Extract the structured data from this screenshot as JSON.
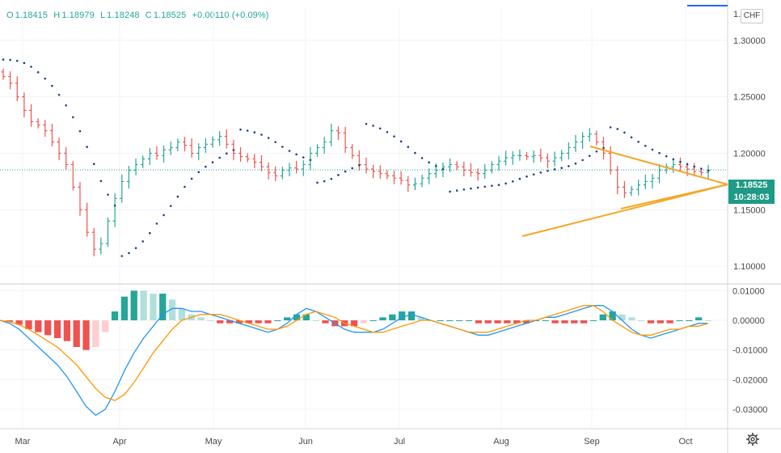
{
  "header": {
    "ohlc": [
      {
        "k": "O",
        "v": "1.18415"
      },
      {
        "k": "H",
        "v": "1.18979"
      },
      {
        "k": "L",
        "v": "1.18248"
      },
      {
        "k": "C",
        "v": "1.18525"
      }
    ],
    "change": "+0.00110 (+0.09%)"
  },
  "currency_button": "CHF",
  "last_price_label": "1.18525",
  "countdown_label": "10:28:03",
  "colors": {
    "up": "#26a69a",
    "down": "#ef5350",
    "hist_up_strong": "#26a69a",
    "hist_up_weak": "#b2dfdb",
    "hist_down_strong": "#ef5350",
    "hist_down_weak": "#ffcdd2",
    "macd_line": "#2196f3",
    "signal_line": "#ff9800",
    "sar_dots": "#1e3f8a",
    "trendlines": "#f5a623"
  },
  "chart_data": [
    {
      "type": "ohlc",
      "price_axis_ticks": [
        "1.30000",
        "1.25000",
        "1.20000",
        "1.15000",
        "1.10000"
      ],
      "time_axis_ticks": [
        "Mar",
        "Apr",
        "May",
        "Jun",
        "Jul",
        "Aug",
        "Sep",
        "Oct"
      ],
      "ylim": [
        1.085,
        1.33
      ],
      "last_price": 1.18525,
      "series_close_approx": [
        1.268,
        1.262,
        1.25,
        1.238,
        1.228,
        1.225,
        1.22,
        1.21,
        1.2,
        1.19,
        1.17,
        1.15,
        1.13,
        1.115,
        1.12,
        1.14,
        1.16,
        1.175,
        1.185,
        1.19,
        1.195,
        1.2,
        1.198,
        1.203,
        1.205,
        1.21,
        1.207,
        1.2,
        1.205,
        1.208,
        1.212,
        1.215,
        1.208,
        1.2,
        1.197,
        1.195,
        1.192,
        1.188,
        1.183,
        1.18,
        1.185,
        1.187,
        1.186,
        1.19,
        1.2,
        1.205,
        1.21,
        1.22,
        1.218,
        1.205,
        1.198,
        1.19,
        1.186,
        1.184,
        1.182,
        1.18,
        1.178,
        1.176,
        1.172,
        1.173,
        1.178,
        1.182,
        1.185,
        1.188,
        1.19,
        1.188,
        1.185,
        1.183,
        1.182,
        1.185,
        1.19,
        1.193,
        1.196,
        1.198,
        1.198,
        1.197,
        1.198,
        1.196,
        1.193,
        1.196,
        1.2,
        1.205,
        1.21,
        1.215,
        1.217,
        1.21,
        1.2,
        1.185,
        1.17,
        1.165,
        1.168,
        1.172,
        1.175,
        1.178,
        1.185,
        1.188,
        1.19,
        1.188,
        1.186,
        1.184,
        1.183,
        1.185
      ]
    },
    {
      "type": "macd",
      "axis_ticks": [
        "0.01000",
        "0.00000",
        "-0.01000",
        "-0.02000",
        "-0.03000"
      ],
      "ylim": [
        -0.036,
        0.012
      ],
      "macd_approx": [
        0,
        -0.001,
        -0.003,
        -0.006,
        -0.009,
        -0.012,
        -0.015,
        -0.019,
        -0.024,
        -0.029,
        -0.032,
        -0.03,
        -0.024,
        -0.017,
        -0.011,
        -0.006,
        -0.002,
        0.002,
        0.004,
        0.004,
        0.003,
        0.003,
        0.002,
        0.001,
        0.0,
        -0.001,
        -0.002,
        -0.003,
        -0.004,
        -0.003,
        -0.001,
        0.002,
        0.004,
        0.003,
        0.001,
        -0.001,
        -0.003,
        -0.004,
        -0.004,
        -0.004,
        -0.003,
        -0.001,
        0.001,
        0.002,
        0.001,
        0.0,
        -0.001,
        -0.002,
        -0.003,
        -0.004,
        -0.005,
        -0.005,
        -0.004,
        -0.003,
        -0.002,
        -0.001,
        0.0,
        0.001,
        0.001,
        0.002,
        0.003,
        0.004,
        0.005,
        0.005,
        0.003,
        0.0,
        -0.003,
        -0.005,
        -0.006,
        -0.005,
        -0.004,
        -0.003,
        -0.002,
        -0.001,
        -0.001,
        0.0,
        0.0
      ],
      "signal_approx": [
        0,
        -0.0005,
        -0.0015,
        -0.003,
        -0.005,
        -0.007,
        -0.009,
        -0.012,
        -0.015,
        -0.019,
        -0.023,
        -0.026,
        -0.027,
        -0.025,
        -0.021,
        -0.016,
        -0.011,
        -0.007,
        -0.003,
        0.0,
        0.001,
        0.002,
        0.002,
        0.002,
        0.001,
        0.0,
        -0.001,
        -0.002,
        -0.003,
        -0.003,
        -0.002,
        0.0,
        0.002,
        0.003,
        0.002,
        0.001,
        -0.001,
        -0.002,
        -0.003,
        -0.004,
        -0.004,
        -0.003,
        -0.002,
        -0.001,
        0.0,
        0.0,
        -0.001,
        -0.002,
        -0.003,
        -0.004,
        -0.004,
        -0.004,
        -0.003,
        -0.002,
        -0.001,
        0.0,
        0.0,
        0.001,
        0.002,
        0.003,
        0.004,
        0.005,
        0.005,
        0.003,
        0.0,
        -0.002,
        -0.004,
        -0.005,
        -0.005,
        -0.004,
        -0.003,
        -0.003,
        -0.002,
        -0.002,
        -0.001
      ]
    }
  ]
}
